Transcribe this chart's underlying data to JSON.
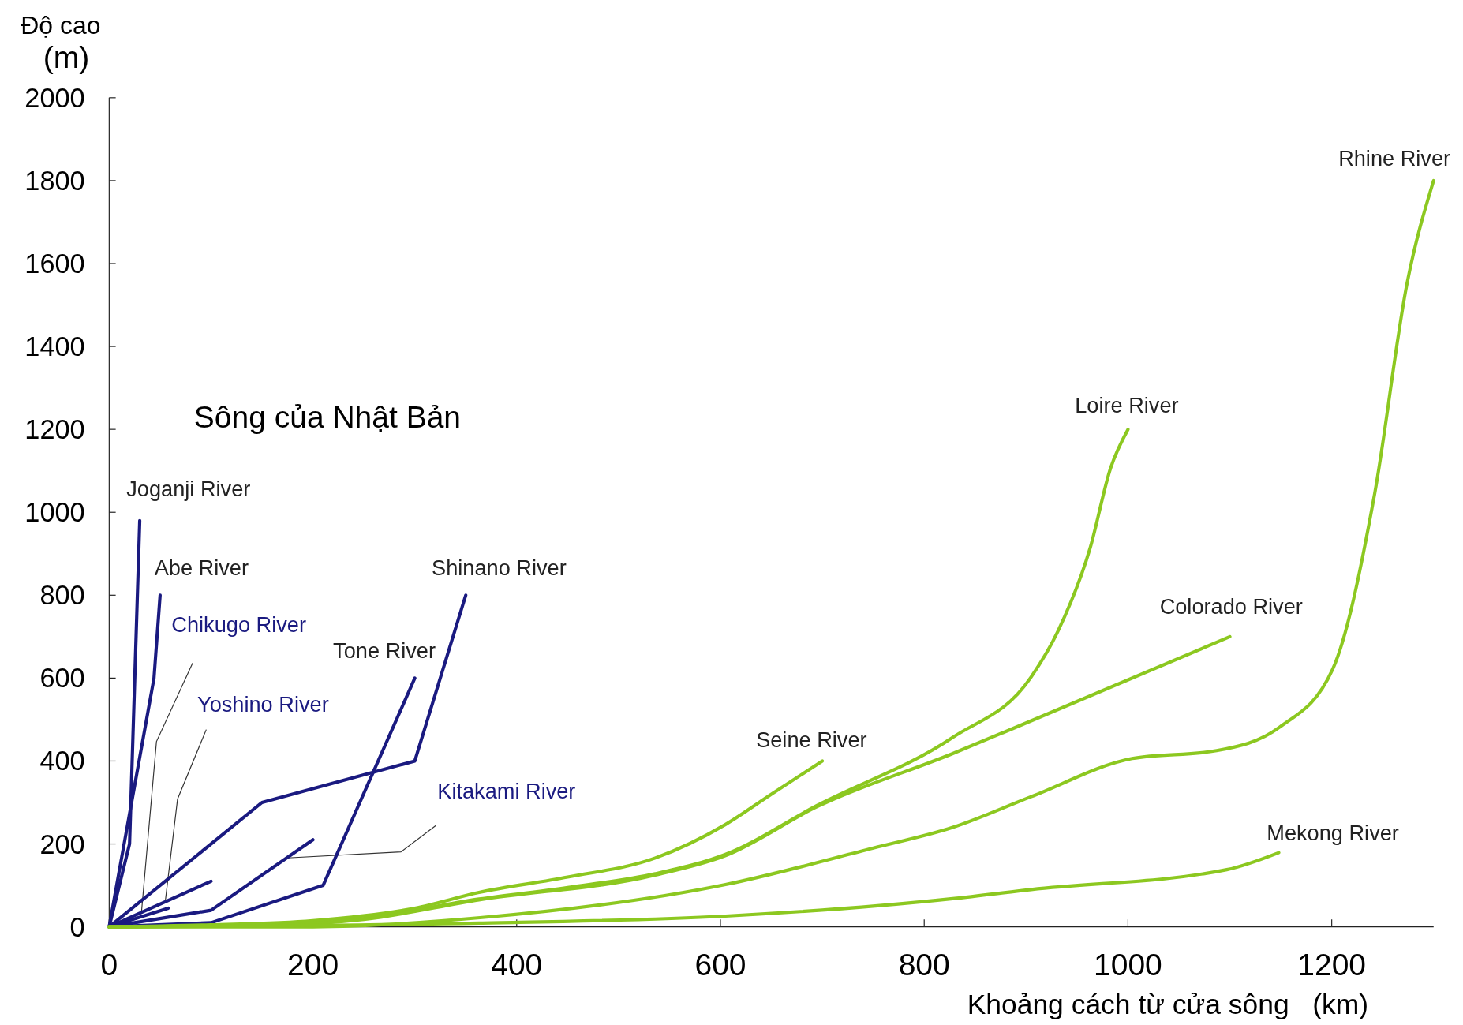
{
  "chart_data": {
    "type": "line",
    "xlabel": "Khoảng cách từ cửa sông   (km)",
    "ylabel": "Độ cao\n(m)",
    "annotations": [
      "Sông của Nhật Bản"
    ],
    "xlim": [
      0,
      1300
    ],
    "ylim": [
      0,
      2000
    ],
    "xticks": [
      0,
      200,
      400,
      600,
      800,
      1000,
      1200
    ],
    "yticks": [
      0,
      200,
      400,
      600,
      800,
      1000,
      1200,
      1400,
      1600,
      1800,
      2000
    ],
    "grid": false,
    "legend": false,
    "marker": "none",
    "line_style": "solid",
    "series": [
      {
        "name": "Joganji River",
        "color": "#1a1a80",
        "x": [
          0,
          20,
          30
        ],
        "values": [
          0,
          200,
          980
        ]
      },
      {
        "name": "Abe River",
        "color": "#1a1a80",
        "x": [
          0,
          44,
          50
        ],
        "values": [
          0,
          600,
          800
        ]
      },
      {
        "name": "Chikugo River",
        "color": "#1a1a80",
        "x": [
          0,
          58
        ],
        "values": [
          0,
          45
        ]
      },
      {
        "name": "Yoshino River",
        "color": "#1a1a80",
        "x": [
          0,
          100
        ],
        "values": [
          0,
          110
        ]
      },
      {
        "name": "Tone River",
        "color": "#1a1a80",
        "x": [
          0,
          100,
          210,
          300
        ],
        "values": [
          0,
          10,
          100,
          600
        ]
      },
      {
        "name": "Shinano River",
        "color": "#1a1a80",
        "x": [
          0,
          150,
          300,
          350
        ],
        "values": [
          0,
          300,
          400,
          800
        ]
      },
      {
        "name": "Kitakami River",
        "color": "#1a1a80",
        "x": [
          0,
          100,
          200
        ],
        "values": [
          0,
          40,
          210
        ]
      },
      {
        "name": "Seine River",
        "color": "#8cc820",
        "x": [
          0,
          100,
          200,
          300,
          363,
          450,
          536,
          605,
          650,
          700
        ],
        "values": [
          0,
          5,
          15,
          45,
          83,
          120,
          166,
          247,
          320,
          400
        ]
      },
      {
        "name": "Loire River",
        "color": "#8cc820",
        "x": [
          0,
          150,
          250,
          363,
          450,
          536,
          605,
          695,
          828,
          905,
          931,
          963,
          983,
          1000
        ],
        "values": [
          0,
          3,
          20,
          67,
          95,
          128,
          175,
          293,
          457,
          603,
          712,
          915,
          1107,
          1200
        ]
      },
      {
        "name": "Colorado River",
        "color": "#8cc820",
        "x": [
          0,
          150,
          250,
          363,
          536,
          605,
          695,
          828,
          905,
          1100
        ],
        "values": [
          0,
          3,
          18,
          65,
          125,
          172,
          290,
          418,
          497,
          700
        ]
      },
      {
        "name": "Rhine River",
        "color": "#8cc820",
        "x": [
          0,
          200,
          364,
          605,
          750,
          828,
          905,
          1004,
          1087,
          1149,
          1201,
          1242,
          1274,
          1300
        ],
        "values": [
          0,
          0,
          22,
          102,
          190,
          240,
          314,
          406,
          425,
          482,
          622,
          1043,
          1553,
          1800
        ]
      },
      {
        "name": "Mekong River",
        "color": "#8cc820",
        "x": [
          0,
          363,
          605,
          828,
          905,
          1097,
          1148
        ],
        "values": [
          0,
          9,
          26,
          68,
          90,
          138,
          179
        ]
      }
    ]
  }
}
